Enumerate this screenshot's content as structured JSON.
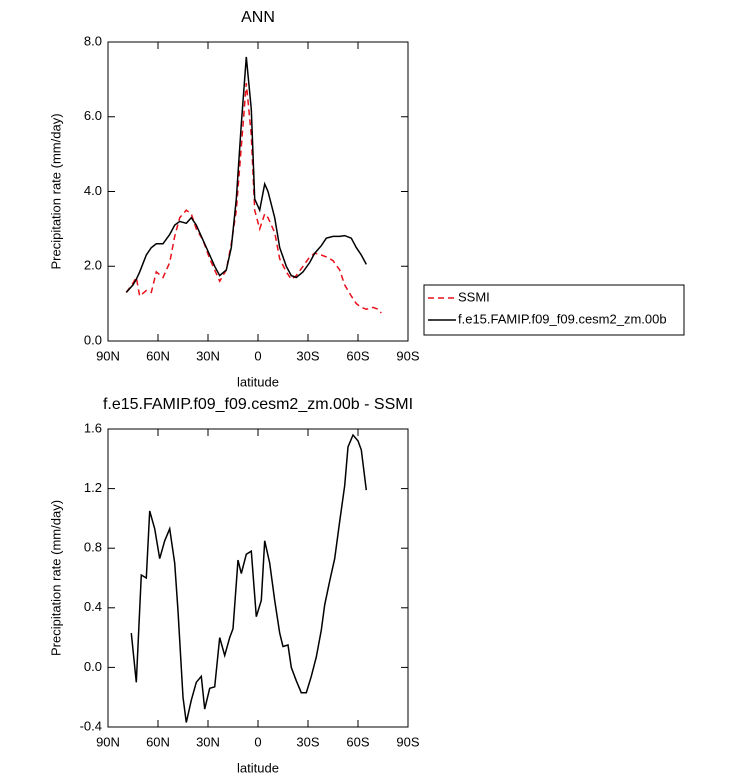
{
  "chart_data": [
    {
      "type": "line",
      "title": "ANN",
      "xlabel": "latitude",
      "ylabel": "Precipitation rate (mm/day)",
      "x": [
        79,
        75,
        73,
        71,
        67,
        64,
        61,
        57,
        53,
        50,
        47,
        43,
        40,
        37,
        33,
        29,
        26,
        23,
        19,
        16,
        13,
        10,
        7,
        4,
        2,
        -1,
        -4,
        -6,
        -10,
        -13,
        -17,
        -20,
        -23,
        -27,
        -31,
        -34,
        -38,
        -41,
        -45,
        -49,
        -52,
        -56,
        -59,
        -62,
        -65,
        -69,
        -72,
        -74
      ],
      "xlim": [
        90,
        -90
      ],
      "xticks": [
        {
          "value": 90,
          "label": "90N"
        },
        {
          "value": 60,
          "label": "60N"
        },
        {
          "value": 30,
          "label": "30N"
        },
        0,
        {
          "value": -30,
          "label": "30S"
        },
        {
          "value": -60,
          "label": "60S"
        },
        {
          "value": -90,
          "label": "90S"
        }
      ],
      "ylim": [
        0,
        8
      ],
      "yticks": [
        {
          "value": 0,
          "label": "0.0"
        },
        {
          "value": 2,
          "label": "2.0"
        },
        {
          "value": 4,
          "label": "4.0"
        },
        {
          "value": 6,
          "label": "6.0"
        },
        {
          "value": 8,
          "label": "8.0"
        }
      ],
      "legend": "right",
      "series": [
        {
          "name": "SSMI",
          "color": "#e8101a",
          "line_style": "dashed",
          "values": [
            1.3,
            1.55,
            1.7,
            1.2,
            1.35,
            1.3,
            1.85,
            1.7,
            2.1,
            2.8,
            3.3,
            3.5,
            3.4,
            3.0,
            2.7,
            2.2,
            1.9,
            1.6,
            1.9,
            2.6,
            3.5,
            5.2,
            6.9,
            5.5,
            3.5,
            3.0,
            3.4,
            3.3,
            2.9,
            2.2,
            1.85,
            1.65,
            1.75,
            2.0,
            2.25,
            2.35,
            2.3,
            2.25,
            2.15,
            1.9,
            1.5,
            1.2,
            1.0,
            0.9,
            0.85,
            0.9,
            0.85,
            0.75
          ]
        },
        {
          "name": "f.e15.FAMIP.f09_f09.cesm2_zm.00b",
          "color": "#000000",
          "line_style": "solid",
          "values": [
            1.3,
            1.5,
            1.65,
            1.85,
            2.3,
            2.5,
            2.6,
            2.6,
            2.85,
            3.1,
            3.2,
            3.15,
            3.3,
            3.1,
            2.7,
            2.3,
            2.0,
            1.75,
            1.9,
            2.5,
            3.8,
            5.8,
            7.6,
            6.2,
            3.8,
            3.5,
            4.2,
            4.0,
            3.3,
            2.5,
            2.0,
            1.75,
            1.7,
            1.85,
            2.1,
            2.35,
            2.55,
            2.75,
            2.8,
            2.8,
            2.82,
            2.75,
            2.5,
            2.3,
            2.05,
            null,
            null,
            null
          ]
        }
      ]
    },
    {
      "type": "line",
      "title": "f.e15.FAMIP.f09_f09.cesm2_zm.00b - SSMI",
      "xlabel": "latitude",
      "ylabel": "Precipitation rate (mm/day)",
      "x": [
        76,
        73,
        70,
        67,
        65,
        62,
        59,
        56,
        53,
        50,
        48,
        45,
        43,
        40,
        37,
        34,
        32,
        29,
        26,
        23,
        20,
        17,
        15,
        12,
        10,
        7,
        4,
        1,
        -2,
        -4,
        -7,
        -10,
        -13,
        -15,
        -18,
        -20,
        -23,
        -26,
        -29,
        -32,
        -35,
        -38,
        -40,
        -43,
        -46,
        -49,
        -52,
        -54,
        -57,
        -60,
        -62,
        -65
      ],
      "xlim": [
        90,
        -90
      ],
      "xticks": [
        {
          "value": 90,
          "label": "90N"
        },
        {
          "value": 60,
          "label": "60N"
        },
        {
          "value": 30,
          "label": "30N"
        },
        0,
        {
          "value": -30,
          "label": "30S"
        },
        {
          "value": -60,
          "label": "60S"
        },
        {
          "value": -90,
          "label": "90S"
        }
      ],
      "ylim": [
        -0.4,
        1.6
      ],
      "yticks": [
        -0.4,
        {
          "value": 0,
          "label": "0.0"
        },
        0.4,
        0.8,
        1.2,
        1.6
      ],
      "series": [
        {
          "color": "#000000",
          "line_style": "solid",
          "values": [
            0.23,
            -0.1,
            0.62,
            0.6,
            1.05,
            0.93,
            0.73,
            0.85,
            0.93,
            0.7,
            0.38,
            -0.2,
            -0.37,
            -0.22,
            -0.1,
            -0.06,
            -0.28,
            -0.14,
            -0.13,
            0.2,
            0.08,
            0.2,
            0.26,
            0.72,
            0.63,
            0.76,
            0.78,
            0.34,
            0.45,
            0.85,
            0.7,
            0.45,
            0.23,
            0.14,
            0.15,
            0.0,
            -0.09,
            -0.17,
            -0.17,
            -0.06,
            0.07,
            0.25,
            0.42,
            0.58,
            0.73,
            0.98,
            1.22,
            1.48,
            1.56,
            1.52,
            1.46,
            1.19
          ]
        }
      ]
    }
  ]
}
